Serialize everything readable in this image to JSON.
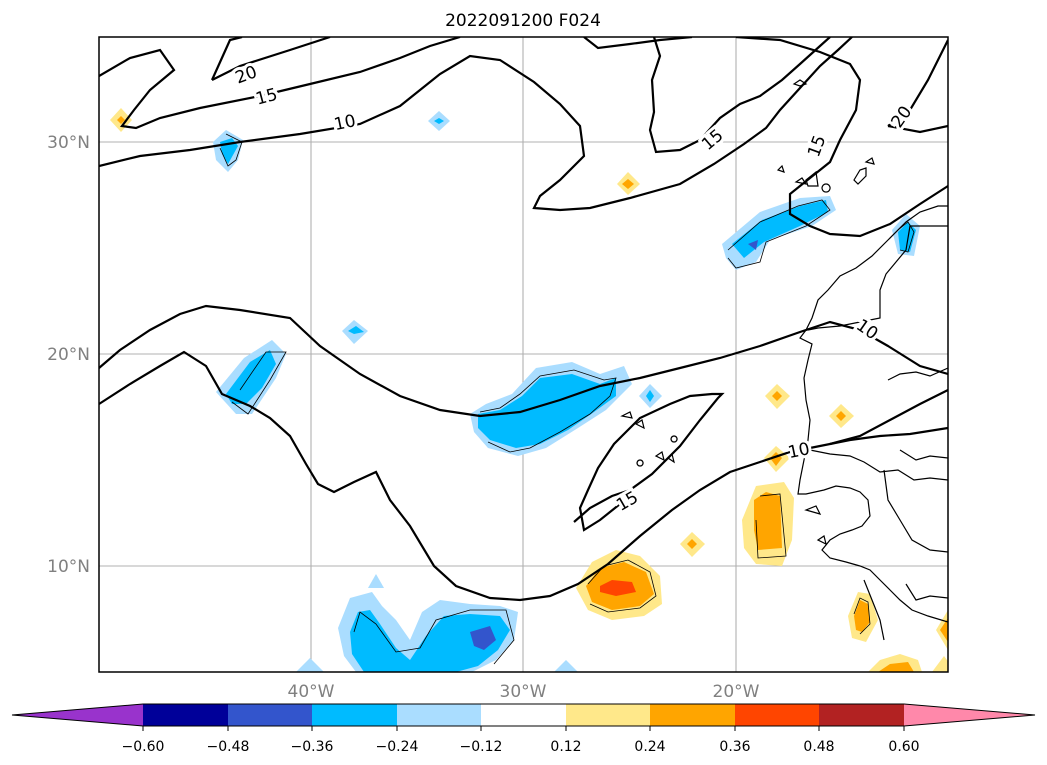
{
  "title": "2022091200 F024",
  "lat_labels": [
    "30°N",
    "20°N",
    "10°N"
  ],
  "lon_labels": [
    "40°W",
    "30°W",
    "20°W"
  ],
  "contour_labels": [
    "20",
    "15",
    "10",
    "15",
    "15",
    "20",
    "10",
    "15",
    "10"
  ],
  "colorbar": {
    "ticks": [
      "−0.60",
      "−0.48",
      "−0.36",
      "−0.24",
      "−0.12",
      "0.12",
      "0.24",
      "0.36",
      "0.48",
      "0.60"
    ],
    "colors": [
      "#9933cc",
      "#000099",
      "#3355cc",
      "#00bbff",
      "#aaddff",
      "#ffffff",
      "#ffe88a",
      "#ffa500",
      "#ff4500",
      "#b22222",
      "#ff88aa"
    ]
  },
  "shading_colors": {
    "light_blue": "#aaddff",
    "blue": "#00bbff",
    "dark_blue": "#3355cc",
    "light_yellow": "#ffe88a",
    "orange": "#ffa500",
    "red_orange": "#ff4500"
  }
}
